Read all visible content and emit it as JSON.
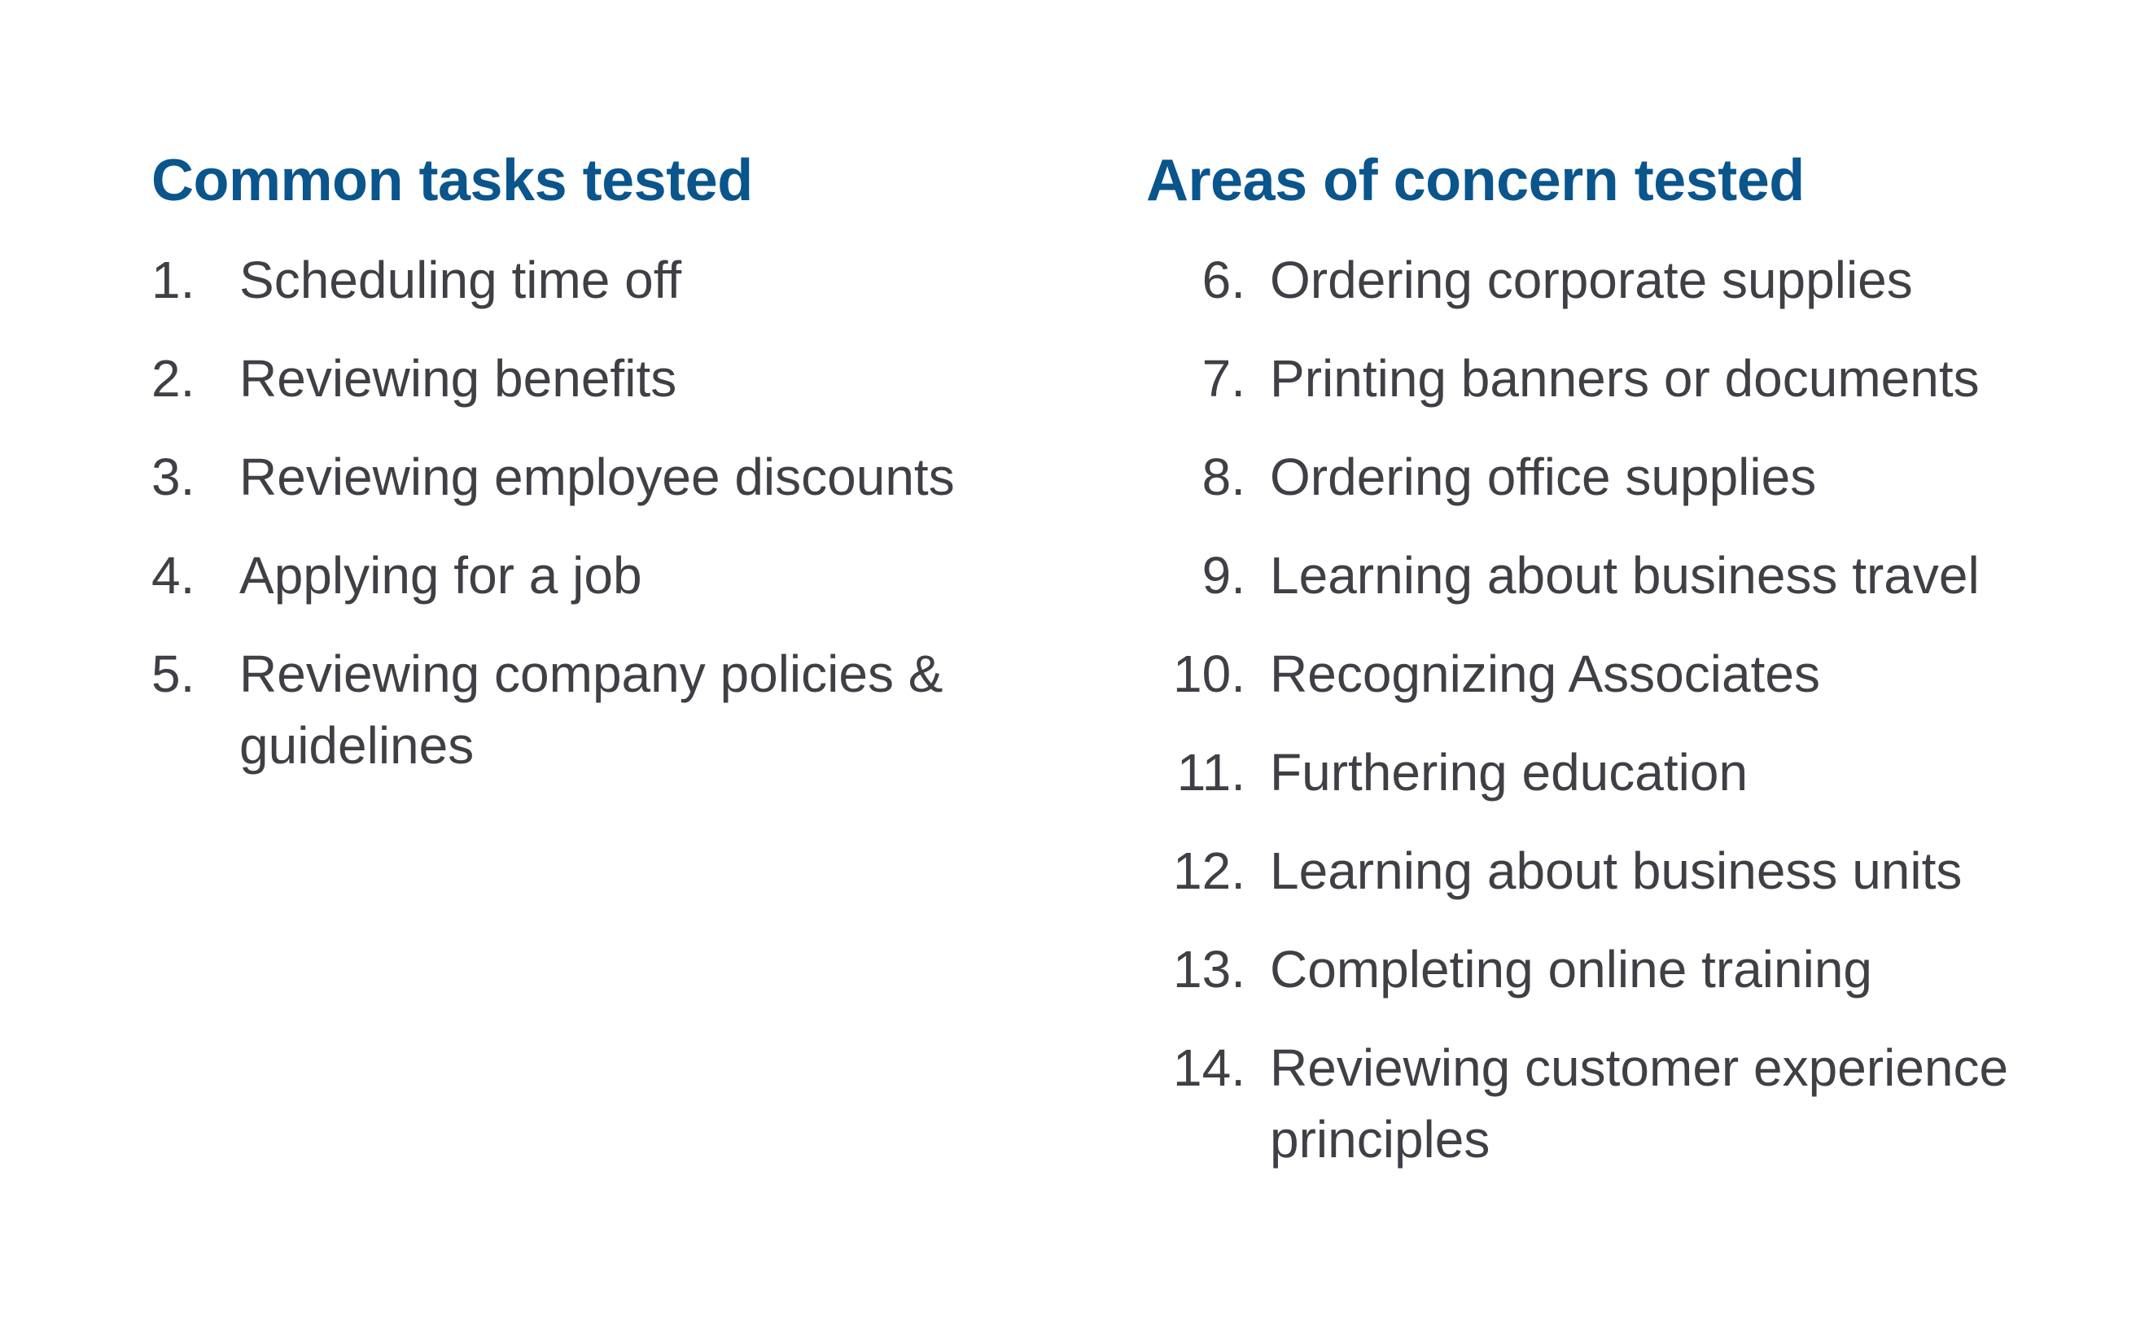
{
  "left": {
    "heading": "Common tasks tested",
    "items": [
      {
        "num": "1.",
        "text": "Scheduling time off"
      },
      {
        "num": "2.",
        "text": "Reviewing benefits"
      },
      {
        "num": "3.",
        "text": "Reviewing employee discounts"
      },
      {
        "num": "4.",
        "text": "Applying for a job"
      },
      {
        "num": "5.",
        "text": "Reviewing company policies & guidelines"
      }
    ]
  },
  "right": {
    "heading": "Areas of concern tested",
    "items": [
      {
        "num": "6.",
        "text": "Ordering corporate supplies"
      },
      {
        "num": "7.",
        "text": "Printing banners or documents"
      },
      {
        "num": "8.",
        "text": "Ordering office supplies"
      },
      {
        "num": "9.",
        "text": "Learning about business travel"
      },
      {
        "num": "10.",
        "text": "Recognizing Associates"
      },
      {
        "num": "11.",
        "text": "Furthering education"
      },
      {
        "num": "12.",
        "text": "Learning about business units"
      },
      {
        "num": "13.",
        "text": "Completing online training"
      },
      {
        "num": "14.",
        "text": "Reviewing customer experience principles"
      }
    ]
  },
  "colors": {
    "heading": "#0a558c",
    "body_text": "#3f3f45",
    "background": "#ffffff"
  }
}
